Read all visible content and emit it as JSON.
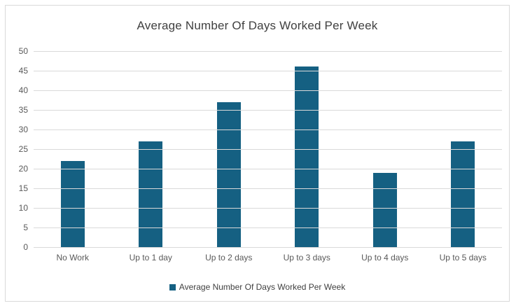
{
  "chart_data": {
    "type": "bar",
    "title": "Average Number Of Days Worked Per Week",
    "categories": [
      "No Work",
      "Up to 1 day",
      "Up to 2 days",
      "Up to 3 days",
      "Up to 4 days",
      "Up to 5 days"
    ],
    "values": [
      22,
      27,
      37,
      46,
      19,
      27
    ],
    "series_name": "Average Number Of Days Worked Per Week",
    "xlabel": "",
    "ylabel": "",
    "ylim": [
      0,
      50
    ],
    "ytick_step": 5,
    "grid": true,
    "legend_position": "bottom",
    "colors": {
      "bar": "#156082",
      "gridline": "#D9D9D9",
      "axis_text": "#595959",
      "title_text": "#404040",
      "frame_border": "#D9D9D9",
      "background": "#ffffff"
    }
  }
}
